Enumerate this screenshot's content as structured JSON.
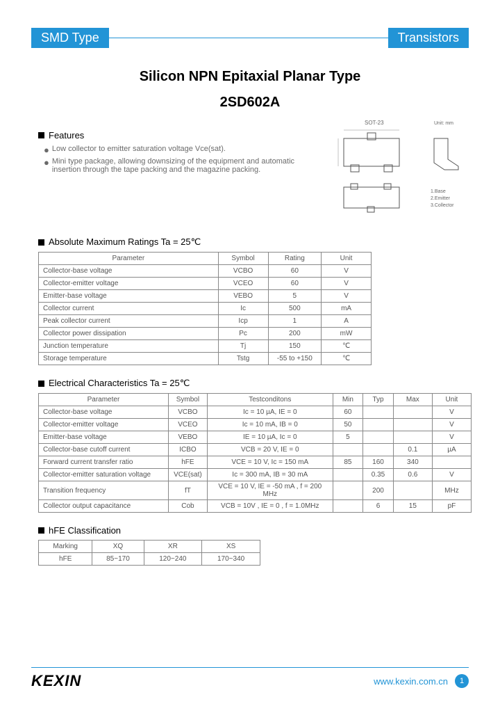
{
  "header": {
    "left": "SMD Type",
    "right": "Transistors"
  },
  "title": "Silicon NPN Epitaxial Planar Type",
  "part_number": "2SD602A",
  "features": {
    "heading": "Features",
    "items": [
      "Low collector to emitter saturation voltage Vce(sat).",
      "Mini type package, allowing downsizing of the equipment and automatic insertion through the tape packing and the magazine packing."
    ]
  },
  "diagram": {
    "label_top": "SOT-23",
    "label_right": "Unit: mm",
    "pins": [
      "1.Base",
      "2.Emitter",
      "3.Collector"
    ],
    "dim_color": "#888888",
    "outline_color": "#555555"
  },
  "abs_max": {
    "heading": "Absolute Maximum Ratings Ta = 25℃",
    "columns": [
      "Parameter",
      "Symbol",
      "Rating",
      "Unit"
    ],
    "col_widths": [
      "54%",
      "15%",
      "16%",
      "15%"
    ],
    "rows": [
      [
        "Collector-base voltage",
        "VCBO",
        "60",
        "V"
      ],
      [
        "Collector-emitter voltage",
        "VCEO",
        "60",
        "V"
      ],
      [
        "Emitter-base voltage",
        "VEBO",
        "5",
        "V"
      ],
      [
        "Collector current",
        "Ic",
        "500",
        "mA"
      ],
      [
        "Peak collector current",
        "Icp",
        "1",
        "A"
      ],
      [
        "Collector power dissipation",
        "Pc",
        "200",
        "mW"
      ],
      [
        "Junction temperature",
        "Tj",
        "150",
        "℃"
      ],
      [
        "Storage temperature",
        "Tstg",
        "-55 to +150",
        "℃"
      ]
    ]
  },
  "elec": {
    "heading": "Electrical Characteristics Ta = 25℃",
    "columns": [
      "Parameter",
      "Symbol",
      "Testconditons",
      "Min",
      "Typ",
      "Max",
      "Unit"
    ],
    "col_widths": [
      "30%",
      "9%",
      "29%",
      "7%",
      "7%",
      "9%",
      "9%"
    ],
    "rows": [
      [
        "Collector-base voltage",
        "VCBO",
        "Ic = 10 µA, IE = 0",
        "60",
        "",
        "",
        "V"
      ],
      [
        "Collector-emitter voltage",
        "VCEO",
        "Ic = 10 mA, IB = 0",
        "50",
        "",
        "",
        "V"
      ],
      [
        "Emitter-base voltage",
        "VEBO",
        "IE = 10 µA, Ic = 0",
        "5",
        "",
        "",
        "V"
      ],
      [
        "Collector-base cutoff current",
        "ICBO",
        "VCB = 20 V, IE = 0",
        "",
        "",
        "0.1",
        "µA"
      ],
      [
        "Forward current transfer ratio",
        "hFE",
        "VCE = 10 V, Ic = 150 mA",
        "85",
        "160",
        "340",
        ""
      ],
      [
        "Collector-emitter saturation voltage",
        "VCE(sat)",
        "Ic = 300 mA, IB = 30 mA",
        "",
        "0.35",
        "0.6",
        "V"
      ],
      [
        "Transition frequency",
        "fT",
        "VCE = 10 V, IE = -50 mA , f = 200 MHz",
        "",
        "200",
        "",
        "MHz"
      ],
      [
        "Collector output capacitance",
        "Cob",
        "VCB = 10V , IE = 0 , f = 1.0MHz",
        "",
        "6",
        "15",
        "pF"
      ]
    ]
  },
  "hfe": {
    "heading": "hFE Classification",
    "columns": [
      "Marking",
      "XQ",
      "XR",
      "XS"
    ],
    "row_label": "hFE",
    "values": [
      "85~170",
      "120~240",
      "170~340"
    ]
  },
  "footer": {
    "logo": "KEXIN",
    "url": "www.kexin.com.cn",
    "page": "1"
  },
  "colors": {
    "accent": "#2294d6",
    "text_muted": "#6a6a6a",
    "border": "#888888"
  }
}
